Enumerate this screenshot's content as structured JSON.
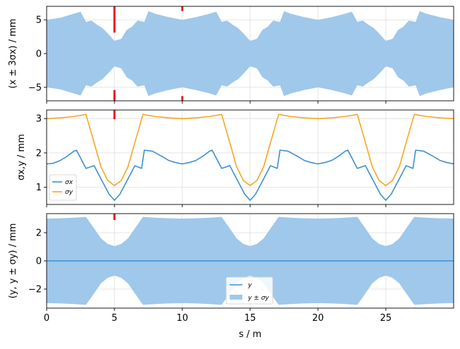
{
  "chart_data": [
    {
      "type": "area",
      "ylabel": "(x ± 3σx) / mm",
      "xlim": [
        0,
        30
      ],
      "ylim": [
        -7,
        7
      ],
      "xticks": [
        0,
        5,
        10,
        15,
        20,
        25
      ],
      "yticks": [
        -5,
        0,
        5
      ],
      "grid": true,
      "colors": {
        "band": "#9fc8eb",
        "marker": "#e31a1c"
      },
      "envelope": {
        "x": [
          0,
          1,
          2,
          2.5,
          2.9,
          3.3,
          3.7,
          4.1,
          4.5,
          5,
          5.5,
          5.9,
          6.3,
          6.7,
          7.2,
          7.5,
          8,
          9,
          10,
          11,
          12,
          12.5,
          12.9,
          13.3,
          13.7,
          14.1,
          14.5,
          15,
          15.5,
          15.9,
          16.3,
          16.7,
          17.2,
          17.5,
          18,
          19,
          20,
          21,
          22,
          22.5,
          22.9,
          23.3,
          23.7,
          24.1,
          24.5,
          25,
          25.5,
          25.9,
          26.3,
          26.7,
          27.2,
          27.5,
          28,
          29,
          30
        ],
        "upper": [
          5.0,
          5.3,
          5.9,
          6.2,
          4.7,
          4.9,
          4.3,
          3.8,
          3.0,
          1.9,
          2.2,
          3.5,
          4.0,
          4.9,
          4.7,
          6.3,
          5.9,
          5.4,
          5.0,
          5.4,
          5.9,
          6.2,
          4.7,
          4.9,
          4.3,
          3.8,
          3.0,
          1.9,
          2.2,
          3.5,
          4.0,
          4.9,
          4.7,
          6.3,
          5.9,
          5.4,
          5.0,
          5.4,
          5.9,
          6.2,
          4.7,
          4.9,
          4.3,
          3.8,
          3.0,
          1.9,
          2.2,
          3.5,
          4.0,
          4.9,
          4.7,
          6.3,
          5.9,
          5.4,
          5.0
        ]
      },
      "markers": [
        {
          "x": 5,
          "top": [
            3.1,
            7
          ],
          "bottom": [
            -7,
            -5.4
          ]
        },
        {
          "x": 10,
          "top": [
            6.3,
            7
          ],
          "bottom": [
            -7,
            -6.3
          ]
        }
      ]
    },
    {
      "type": "line",
      "ylabel": "σx,y / mm",
      "xlim": [
        0,
        30
      ],
      "ylim": [
        0.5,
        3.25
      ],
      "xticks": [
        0,
        5,
        10,
        15,
        20,
        25
      ],
      "yticks": [
        1,
        2,
        3
      ],
      "grid": true,
      "legend": "lower-left",
      "series": [
        {
          "name": "σx",
          "color": "#3d8fd1",
          "x": [
            0,
            0.5,
            1,
            1.5,
            2,
            2.2,
            2.9,
            3.5,
            3.8,
            4.2,
            4.6,
            5,
            5.4,
            5.8,
            6.2,
            6.5,
            7,
            7.2,
            7.8,
            8.5,
            9,
            9.5,
            10,
            10.5,
            11,
            11.5,
            12,
            12.2,
            12.9,
            13.5,
            13.8,
            14.2,
            14.6,
            15,
            15.4,
            15.8,
            16.2,
            16.5,
            17,
            17.2,
            17.8,
            18.5,
            19,
            19.5,
            20,
            20.5,
            21,
            21.5,
            22,
            22.2,
            22.9,
            23.5,
            23.8,
            24.2,
            24.6,
            25,
            25.4,
            25.8,
            26.2,
            26.5,
            27,
            27.2,
            27.8,
            28.5,
            29,
            29.5,
            30
          ],
          "y": [
            1.68,
            1.7,
            1.78,
            1.9,
            2.05,
            2.08,
            1.55,
            1.63,
            1.4,
            1.1,
            0.8,
            0.62,
            0.8,
            1.1,
            1.4,
            1.63,
            1.55,
            2.08,
            2.05,
            1.9,
            1.78,
            1.72,
            1.68,
            1.72,
            1.78,
            1.9,
            2.05,
            2.08,
            1.55,
            1.63,
            1.4,
            1.1,
            0.8,
            0.62,
            0.8,
            1.1,
            1.4,
            1.63,
            1.55,
            2.08,
            2.05,
            1.9,
            1.78,
            1.72,
            1.68,
            1.72,
            1.78,
            1.9,
            2.05,
            2.08,
            1.55,
            1.63,
            1.4,
            1.1,
            0.8,
            0.62,
            0.8,
            1.1,
            1.4,
            1.63,
            1.55,
            2.08,
            2.05,
            1.9,
            1.78,
            1.72,
            1.68
          ]
        },
        {
          "name": "σy",
          "color": "#f5a623",
          "x": [
            0,
            1,
            2,
            2.9,
            3.5,
            4,
            4.5,
            5,
            5.5,
            6,
            6.5,
            7.1,
            8,
            9,
            10,
            11,
            12,
            12.9,
            13.5,
            14,
            14.5,
            15,
            15.5,
            16,
            16.5,
            17.1,
            18,
            19,
            20,
            21,
            22,
            22.9,
            23.5,
            24,
            24.5,
            25,
            25.5,
            26,
            26.5,
            27.1,
            28,
            29,
            30
          ],
          "y": [
            3.0,
            3.02,
            3.06,
            3.12,
            2.3,
            1.6,
            1.2,
            1.05,
            1.2,
            1.6,
            2.3,
            3.12,
            3.06,
            3.02,
            3.0,
            3.02,
            3.06,
            3.12,
            2.3,
            1.6,
            1.2,
            1.05,
            1.2,
            1.6,
            2.3,
            3.12,
            3.06,
            3.02,
            3.0,
            3.02,
            3.06,
            3.12,
            2.3,
            1.6,
            1.2,
            1.05,
            1.2,
            1.6,
            2.3,
            3.12,
            3.06,
            3.02,
            3.0
          ]
        }
      ],
      "markers": [
        {
          "x": 5,
          "top": [
            2.98,
            3.25
          ]
        }
      ]
    },
    {
      "type": "area",
      "xlabel": "s / m",
      "ylabel": "(y, y ± σy) / mm",
      "xlim": [
        0,
        30
      ],
      "ylim": [
        -3.35,
        3.35
      ],
      "xticks": [
        0,
        5,
        10,
        15,
        20,
        25
      ],
      "yticks": [
        -2,
        0,
        2
      ],
      "grid": true,
      "legend": "lower-center",
      "colors": {
        "band": "#9fc8eb",
        "line": "#3d8fd1",
        "marker": "#e31a1c"
      },
      "series": [
        {
          "name": "y",
          "x": [
            0,
            30
          ],
          "y": [
            0,
            0
          ]
        },
        {
          "name": "y ± σy",
          "x": [
            0,
            1,
            2,
            2.9,
            3.5,
            4,
            4.5,
            5,
            5.5,
            6,
            6.5,
            7.1,
            8,
            9,
            10,
            11,
            12,
            12.9,
            13.5,
            14,
            14.5,
            15,
            15.5,
            16,
            16.5,
            17.1,
            18,
            19,
            20,
            21,
            22,
            22.9,
            23.5,
            24,
            24.5,
            25,
            25.5,
            26,
            26.5,
            27.1,
            28,
            29,
            30
          ],
          "upper": [
            3.0,
            3.02,
            3.06,
            3.12,
            2.3,
            1.6,
            1.2,
            1.05,
            1.2,
            1.6,
            2.3,
            3.12,
            3.06,
            3.02,
            3.0,
            3.02,
            3.06,
            3.12,
            2.3,
            1.6,
            1.2,
            1.05,
            1.2,
            1.6,
            2.3,
            3.12,
            3.06,
            3.02,
            3.0,
            3.02,
            3.06,
            3.12,
            2.3,
            1.6,
            1.2,
            1.05,
            1.2,
            1.6,
            2.3,
            3.12,
            3.06,
            3.02,
            3.0
          ]
        }
      ],
      "markers": [
        {
          "x": 5,
          "top": [
            2.9,
            3.35
          ]
        }
      ]
    }
  ]
}
